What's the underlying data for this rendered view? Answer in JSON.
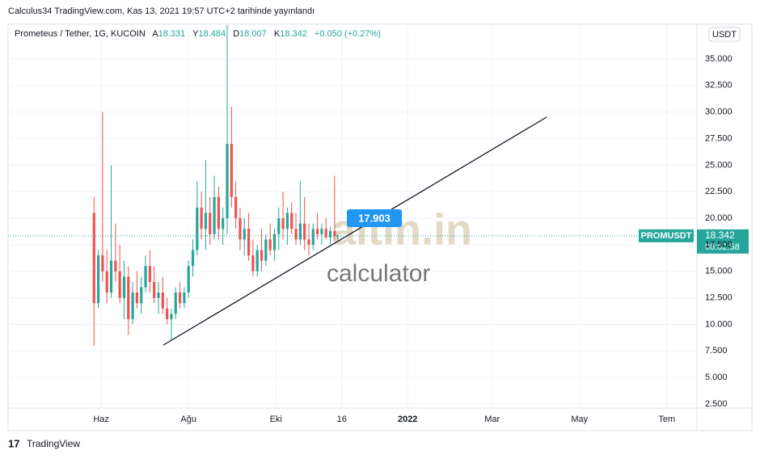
{
  "published": "Calculus34 TradingView.com, Kas 13, 2021 19:57 UTC+2 tarihinde yayınlandı",
  "footer": "TradingView",
  "chart_data": {
    "type": "candlestick",
    "title": "Prometeus / Tether, 1G, KUCOIN",
    "ohlc_labels": [
      "A",
      "Y",
      "D",
      "K"
    ],
    "change": "+0.050 (+0.27%)",
    "currency": "USDT",
    "symbol": "PROMUSDT",
    "countdown": "06:02:58",
    "trend_value": 17.903,
    "watermark": [
      "altin.in",
      "calculator"
    ],
    "up_color": "#26a69a",
    "down_color": "#ef5350",
    "x": [
      "2021-05-27",
      "2021-05-30",
      "2021-06-02",
      "2021-06-05",
      "2021-06-08",
      "2021-06-11",
      "2021-06-14",
      "2021-06-17",
      "2021-06-20",
      "2021-06-23",
      "2021-06-26",
      "2021-06-29",
      "2021-07-02",
      "2021-07-05",
      "2021-07-08",
      "2021-07-11",
      "2021-07-14",
      "2021-07-17",
      "2021-07-20",
      "2021-07-23",
      "2021-07-26",
      "2021-07-29",
      "2021-08-01",
      "2021-08-04",
      "2021-08-07",
      "2021-08-10",
      "2021-08-13",
      "2021-08-16",
      "2021-08-19",
      "2021-08-22",
      "2021-08-25",
      "2021-08-28",
      "2021-08-31",
      "2021-09-03",
      "2021-09-06",
      "2021-09-09",
      "2021-09-12",
      "2021-09-15",
      "2021-09-18",
      "2021-09-21",
      "2021-09-24",
      "2021-09-27",
      "2021-09-30",
      "2021-10-03",
      "2021-10-06",
      "2021-10-09",
      "2021-10-12",
      "2021-10-15",
      "2021-10-18",
      "2021-10-21",
      "2021-10-24",
      "2021-10-27",
      "2021-10-30",
      "2021-11-02",
      "2021-11-05",
      "2021-11-08",
      "2021-11-11",
      "2021-11-13"
    ],
    "open": [
      20.5,
      12,
      16.5,
      15,
      13,
      16,
      15,
      12.5,
      14.5,
      10.5,
      13,
      12,
      13.5,
      15.5,
      14,
      12.5,
      13,
      11.5,
      10.5,
      11,
      13,
      12,
      13,
      15.5,
      17,
      21,
      19,
      20.5,
      18.5,
      22,
      19,
      20,
      27,
      22,
      20,
      18,
      19,
      16.5,
      15,
      17,
      16,
      18,
      17,
      18.5,
      20,
      19,
      20.5,
      19,
      18,
      19.5,
      18,
      17.5,
      19,
      18.5,
      19,
      18.2,
      18.8,
      18.331
    ],
    "high": [
      22,
      17,
      30,
      17,
      25,
      19.5,
      17.5,
      16,
      15.5,
      14,
      15,
      14.5,
      16.5,
      17,
      15.5,
      14,
      14.5,
      12.5,
      11.5,
      13.5,
      14,
      13.5,
      16,
      18,
      23.5,
      22.5,
      25.5,
      22,
      24,
      23,
      21,
      38.2,
      30.5,
      23.5,
      21,
      20,
      20.5,
      18,
      17.5,
      19,
      18.5,
      19.5,
      19,
      21,
      22.5,
      21,
      21.5,
      20.5,
      23.5,
      22,
      19.5,
      19.5,
      20.5,
      19.5,
      20,
      19.2,
      24,
      18.484
    ],
    "low": [
      8,
      11.5,
      14,
      12,
      12.5,
      14,
      12,
      10.5,
      9,
      10,
      11.5,
      11,
      13,
      13,
      12,
      11,
      11,
      10,
      8.5,
      10.5,
      11.5,
      11.5,
      12.5,
      14.5,
      16.5,
      18,
      17,
      17.5,
      18,
      18,
      17.5,
      18.5,
      21,
      19,
      17,
      16.5,
      16,
      14.5,
      14.5,
      15,
      15.5,
      16.5,
      16,
      17,
      18,
      17.5,
      18.5,
      17.5,
      17.5,
      17,
      16.5,
      17,
      18,
      17.5,
      18,
      17.6,
      18,
      18.007
    ],
    "close": [
      12,
      16.5,
      15,
      13,
      16,
      15,
      12.5,
      14.5,
      10.5,
      13,
      12,
      13.5,
      15.5,
      14,
      12.5,
      13,
      11.5,
      10.5,
      11,
      13,
      12,
      13,
      15.5,
      17,
      21,
      19,
      20.5,
      18.5,
      22,
      19,
      20,
      27,
      22,
      20,
      18,
      19,
      16.5,
      15,
      17,
      16,
      18,
      17,
      18.5,
      20,
      19,
      20.5,
      19,
      18,
      19.5,
      18,
      17.5,
      19,
      18.5,
      19,
      18.2,
      18.8,
      18.331,
      18.342
    ],
    "xlim": [
      "2021-03-28",
      "2022-07-22"
    ],
    "xticks": [
      {
        "value": "2021-06-01",
        "label": "Haz"
      },
      {
        "value": "2021-08-01",
        "label": "Ağu"
      },
      {
        "value": "2021-10-01",
        "label": "Eki"
      },
      {
        "value": "2021-11-16",
        "label": "16"
      },
      {
        "value": "2022-01-01",
        "label": "2022"
      },
      {
        "value": "2022-03-01",
        "label": "Mar"
      },
      {
        "value": "2022-05-01",
        "label": "May"
      },
      {
        "value": "2022-07-01",
        "label": "Tem"
      }
    ],
    "ylim": [
      2.12,
      38.27
    ],
    "yticks": [
      {
        "value": 2.5,
        "label": "2.500"
      },
      {
        "value": 5,
        "label": "5.000"
      },
      {
        "value": 7.5,
        "label": "7.500"
      },
      {
        "value": 10,
        "label": "10.000"
      },
      {
        "value": 12.5,
        "label": "12.500"
      },
      {
        "value": 15,
        "label": "15.000"
      },
      {
        "value": 17.5,
        "label": "17.500"
      },
      {
        "value": 20,
        "label": "20.000"
      },
      {
        "value": 22.5,
        "label": "22.500"
      },
      {
        "value": 25,
        "label": "25.000"
      },
      {
        "value": 27.5,
        "label": "27.500"
      },
      {
        "value": 30,
        "label": "30.000"
      },
      {
        "value": 32.5,
        "label": "32.500"
      },
      {
        "value": 35,
        "label": "35.000"
      }
    ],
    "grid": true
  }
}
